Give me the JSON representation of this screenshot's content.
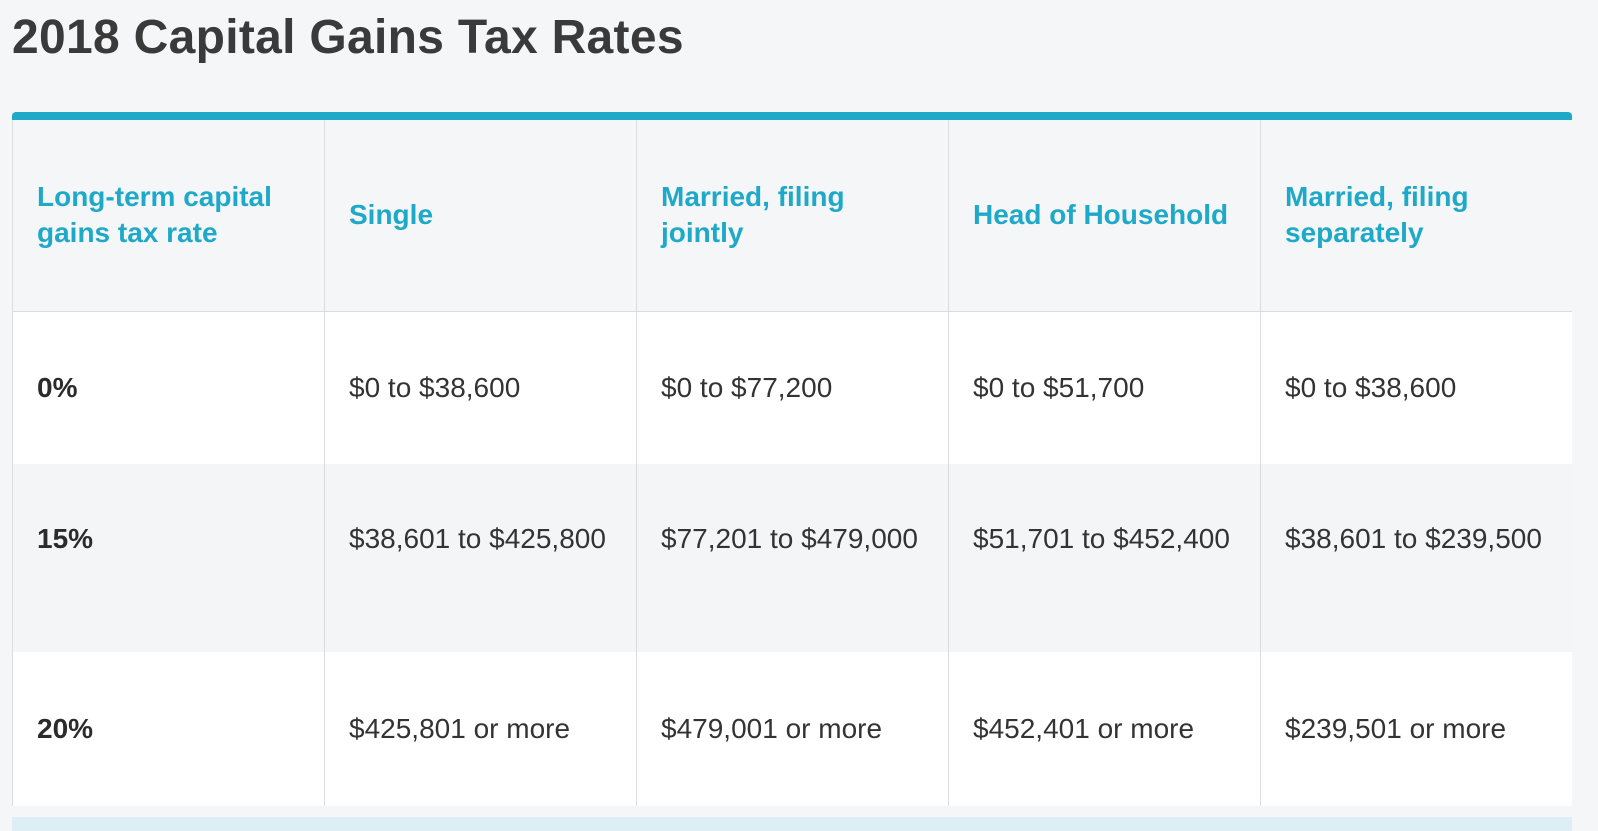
{
  "page_title": "2018 Capital Gains Tax Rates",
  "accent_color": "#1fa9c9",
  "table": {
    "headers": [
      "Long-term capital gains tax rate",
      "Single",
      "Married, filing jointly",
      "Head of Household",
      "Married, filing separately"
    ],
    "rows": [
      [
        "0%",
        "$0 to $38,600",
        "$0 to $77,200",
        "$0 to $51,700",
        "$0 to $38,600"
      ],
      [
        "15%",
        "$38,601 to $425,800",
        "$77,201 to $479,000",
        "$51,701 to $452,400",
        "$38,601 to $239,500"
      ],
      [
        "20%",
        "$425,801 or more",
        "$479,001 or more",
        "$452,401 or more",
        "$239,501 or more"
      ]
    ]
  }
}
